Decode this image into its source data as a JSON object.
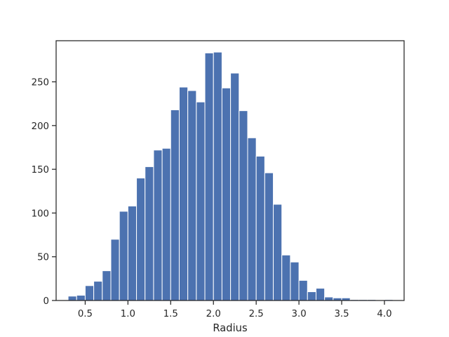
{
  "chart_data": {
    "type": "bar",
    "subtype": "histogram",
    "title": "",
    "xlabel": "Radius",
    "ylabel": "",
    "xlim": [
      0.16,
      4.23
    ],
    "ylim": [
      0,
      297
    ],
    "bin_start": 0.3,
    "bin_width": 0.1,
    "counts": [
      5,
      6,
      17,
      22,
      34,
      70,
      102,
      108,
      140,
      153,
      172,
      174,
      218,
      244,
      240,
      227,
      283,
      284,
      243,
      260,
      217,
      186,
      165,
      146,
      110,
      52,
      44,
      23,
      10,
      14,
      4,
      3,
      3,
      1,
      1,
      1,
      0,
      1
    ],
    "x_ticks": [
      {
        "value": 0.5,
        "label": "0.5"
      },
      {
        "value": 1.0,
        "label": "1.0"
      },
      {
        "value": 1.5,
        "label": "1.5"
      },
      {
        "value": 2.0,
        "label": "2.0"
      },
      {
        "value": 2.5,
        "label": "2.5"
      },
      {
        "value": 3.0,
        "label": "3.0"
      },
      {
        "value": 3.5,
        "label": "3.5"
      },
      {
        "value": 4.0,
        "label": "4.0"
      }
    ],
    "y_ticks": [
      {
        "value": 0,
        "label": "0"
      },
      {
        "value": 50,
        "label": "50"
      },
      {
        "value": 100,
        "label": "100"
      },
      {
        "value": 150,
        "label": "150"
      },
      {
        "value": 200,
        "label": "200"
      },
      {
        "value": 250,
        "label": "250"
      }
    ],
    "grid": false,
    "bar_color": "#4c72b0",
    "edge_color": "#ffffff",
    "axis_color": "#262626"
  }
}
